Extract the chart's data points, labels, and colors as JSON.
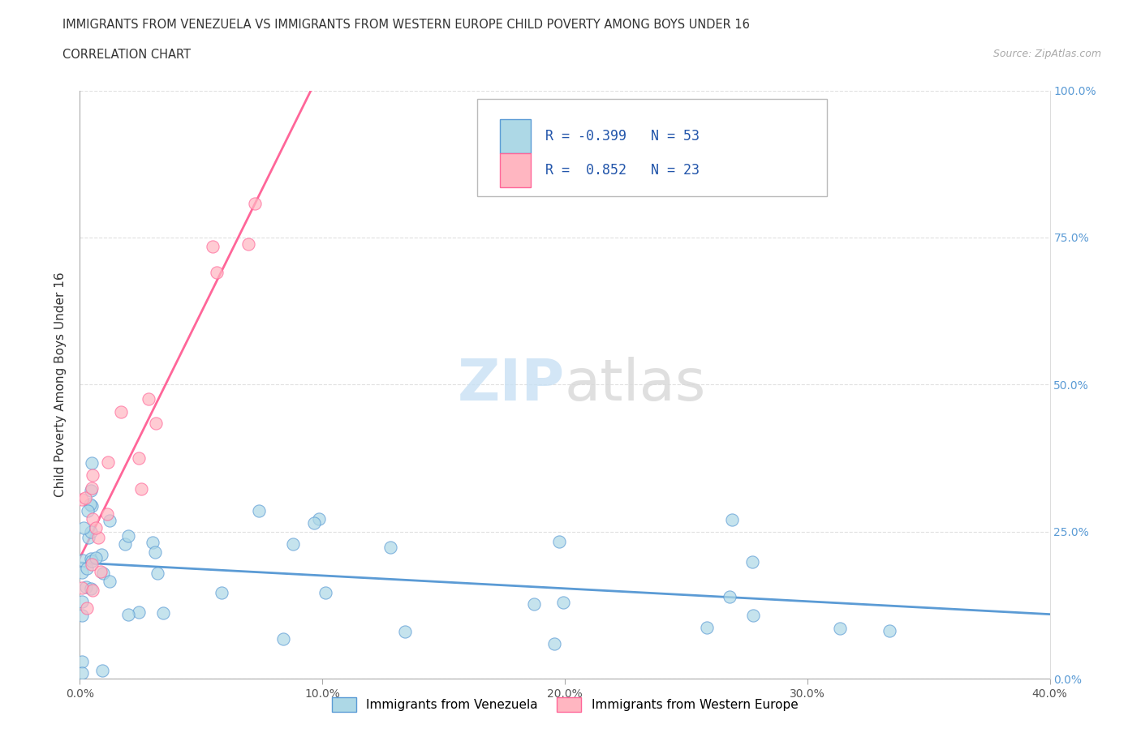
{
  "title": "IMMIGRANTS FROM VENEZUELA VS IMMIGRANTS FROM WESTERN EUROPE CHILD POVERTY AMONG BOYS UNDER 16",
  "subtitle": "CORRELATION CHART",
  "source": "Source: ZipAtlas.com",
  "ylabel": "Child Poverty Among Boys Under 16",
  "xlabel_venezuela": "Immigrants from Venezuela",
  "xlabel_western_europe": "Immigrants from Western Europe",
  "watermark_zip": "ZIP",
  "watermark_atlas": "atlas",
  "venezuela_color": "#add8e6",
  "western_europe_color": "#ffb6c1",
  "venezuela_line_color": "#5b9bd5",
  "western_europe_line_color": "#ff6699",
  "R_venezuela": -0.399,
  "N_venezuela": 53,
  "R_western_europe": 0.852,
  "N_western_europe": 23,
  "xlim": [
    0.0,
    0.4
  ],
  "ylim": [
    0.0,
    1.0
  ],
  "xticks": [
    0.0,
    0.1,
    0.2,
    0.3,
    0.4
  ],
  "yticks": [
    0.0,
    0.25,
    0.5,
    0.75,
    1.0
  ],
  "xtick_labels": [
    "0.0%",
    "10.0%",
    "20.0%",
    "30.0%",
    "40.0%"
  ],
  "ytick_labels": [
    "0.0%",
    "25.0%",
    "50.0%",
    "75.0%",
    "100.0%"
  ],
  "background_color": "#ffffff",
  "grid_color": "#cccccc",
  "title_color": "#333333",
  "axis_label_color": "#333333",
  "tick_color": "#5b9bd5",
  "source_color": "#aaaaaa",
  "legend_text_color": "#2255aa"
}
